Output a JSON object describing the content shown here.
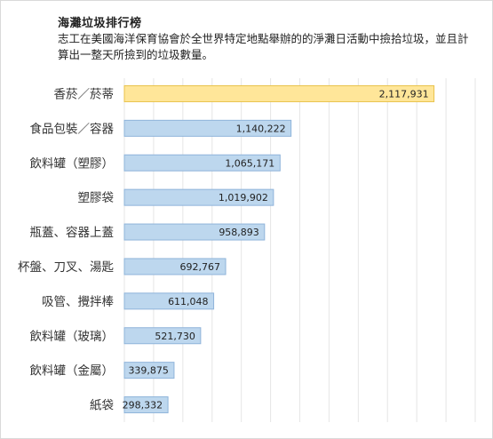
{
  "chart_data": {
    "type": "bar",
    "orientation": "horizontal",
    "title": "海灘垃圾排行榜",
    "subtitle": "志工在美國海洋保育協會於全世界特定地點舉辦的的淨灘日活動中撿拾垃圾，並且計算出一整天所撿到的垃圾數量。",
    "categories": [
      "香菸／菸蒂",
      "食品包裝／容器",
      "飲料罐（塑膠）",
      "塑膠袋",
      "瓶蓋、容器上蓋",
      "杯盤、刀叉、湯匙",
      "吸管、攪拌棒",
      "飲料罐（玻璃）",
      "飲料罐（金屬）",
      "紙袋"
    ],
    "values": [
      2117931,
      1140222,
      1065171,
      1019902,
      958893,
      692767,
      611048,
      521730,
      339875,
      298332
    ],
    "value_labels": [
      "2,117,931",
      "1,140,222",
      "1,065,171",
      "1,019,902",
      "958,893",
      "692,767",
      "611,048",
      "521,730",
      "339,875",
      "298,332"
    ],
    "xlim": [
      0,
      2400000
    ],
    "grid": true,
    "legend": "none",
    "colors": {
      "highlight_fill": "#FFE699",
      "highlight_stroke": "#E8C24A",
      "bar_fill": "#BDD7EE",
      "bar_stroke": "#8FB4DA",
      "grid": "#e6e6e6"
    }
  }
}
